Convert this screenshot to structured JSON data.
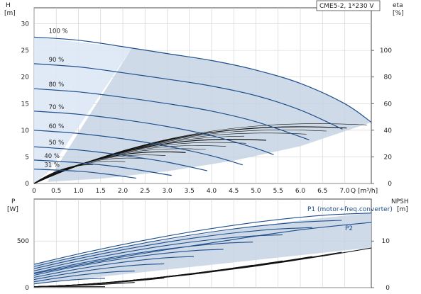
{
  "chart_data": [
    {
      "type": "line",
      "title": "CME5-2, 1*230 V",
      "xlabel": "Q [m³/h]",
      "ylabel": "H\n[m]",
      "ylabel_right": "eta\n[%]",
      "x_ticks": [
        "0",
        "0.5",
        "1.0",
        "1.5",
        "2.0",
        "2.5",
        "3.0",
        "3.5",
        "4.0",
        "4.5",
        "5.0",
        "5.5",
        "6.0",
        "6.5",
        "7.0"
      ],
      "y_ticks": [
        "0",
        "5",
        "10",
        "15",
        "20",
        "25",
        "30"
      ],
      "y_right_ticks": [
        "0",
        "20",
        "40",
        "60",
        "80",
        "100"
      ],
      "xlim": [
        0,
        7.6
      ],
      "ylim": [
        0,
        33
      ],
      "y_right_lim": [
        0,
        132
      ],
      "grid": true,
      "colors": {
        "head_curves": "#1f4e8c",
        "efficiency_curves": "#000000",
        "area_fill": "#c5d3e3",
        "area_light": "#dde8f5"
      },
      "series": [
        {
          "name": "100 %",
          "speed": 100,
          "x": [
            0,
            1,
            2,
            3,
            4,
            5,
            6,
            7,
            7.6
          ],
          "y": [
            27.5,
            26.9,
            25.7,
            24.4,
            23.1,
            21.3,
            18.8,
            15.0,
            11.5
          ]
        },
        {
          "name": "90 %",
          "speed": 90,
          "x": [
            0,
            1,
            2,
            3,
            4,
            5,
            6,
            6.95
          ],
          "y": [
            22.5,
            21.9,
            20.8,
            19.6,
            18.3,
            16.5,
            13.8,
            10.2
          ]
        },
        {
          "name": "80 %",
          "speed": 80,
          "x": [
            0,
            1,
            2,
            3,
            4,
            5,
            6.2
          ],
          "y": [
            17.8,
            17.2,
            16.2,
            15.0,
            13.6,
            11.6,
            8.2
          ]
        },
        {
          "name": "70 %",
          "speed": 70,
          "x": [
            0,
            1,
            2,
            3,
            4,
            5,
            5.4
          ],
          "y": [
            13.6,
            13.0,
            12.0,
            10.7,
            9.0,
            6.6,
            5.4
          ]
        },
        {
          "name": "60 %",
          "speed": 60,
          "x": [
            0,
            1,
            2,
            3,
            4,
            4.7
          ],
          "y": [
            10.0,
            9.4,
            8.4,
            7.0,
            5.2,
            3.5
          ]
        },
        {
          "name": "50 %",
          "speed": 50,
          "x": [
            0,
            1,
            2,
            3,
            3.9
          ],
          "y": [
            6.9,
            6.3,
            5.3,
            4.0,
            2.4
          ]
        },
        {
          "name": "40 %",
          "speed": 40,
          "x": [
            0,
            1,
            2,
            3.1
          ],
          "y": [
            4.4,
            3.9,
            3.0,
            1.5
          ]
        },
        {
          "name": "31 %",
          "speed": 31,
          "x": [
            0,
            1,
            1.6,
            2.3
          ],
          "y": [
            2.7,
            2.3,
            1.8,
            1.0
          ]
        }
      ],
      "annotations": [
        "100 %",
        "90 %",
        "80 %",
        "70 %",
        "60 %",
        "50 %",
        "40 %",
        "31 %"
      ]
    },
    {
      "type": "line",
      "ylabel": "P\n[W]",
      "ylabel_right": "NPSH\n[m]",
      "y_ticks": [
        "0",
        "500"
      ],
      "y_right_ticks": [
        "0",
        "10"
      ],
      "ylim": [
        0,
        950
      ],
      "y_right_lim": [
        0,
        19
      ],
      "xlim": [
        0,
        7.6
      ],
      "grid": true,
      "series": [
        {
          "name": "P1 (motor+freq.converter)",
          "x": [
            0,
            2,
            4,
            6,
            7.6
          ],
          "y": [
            250,
            430,
            590,
            720,
            800
          ]
        },
        {
          "name": "P2",
          "x": [
            0,
            2,
            4,
            6,
            7.6
          ],
          "y": [
            150,
            330,
            480,
            620,
            700
          ]
        }
      ],
      "npsh": {
        "x": [
          0,
          2,
          4,
          6,
          7.6
        ],
        "y": [
          0.3,
          1.2,
          3.0,
          5.8,
          8.5
        ]
      }
    }
  ]
}
